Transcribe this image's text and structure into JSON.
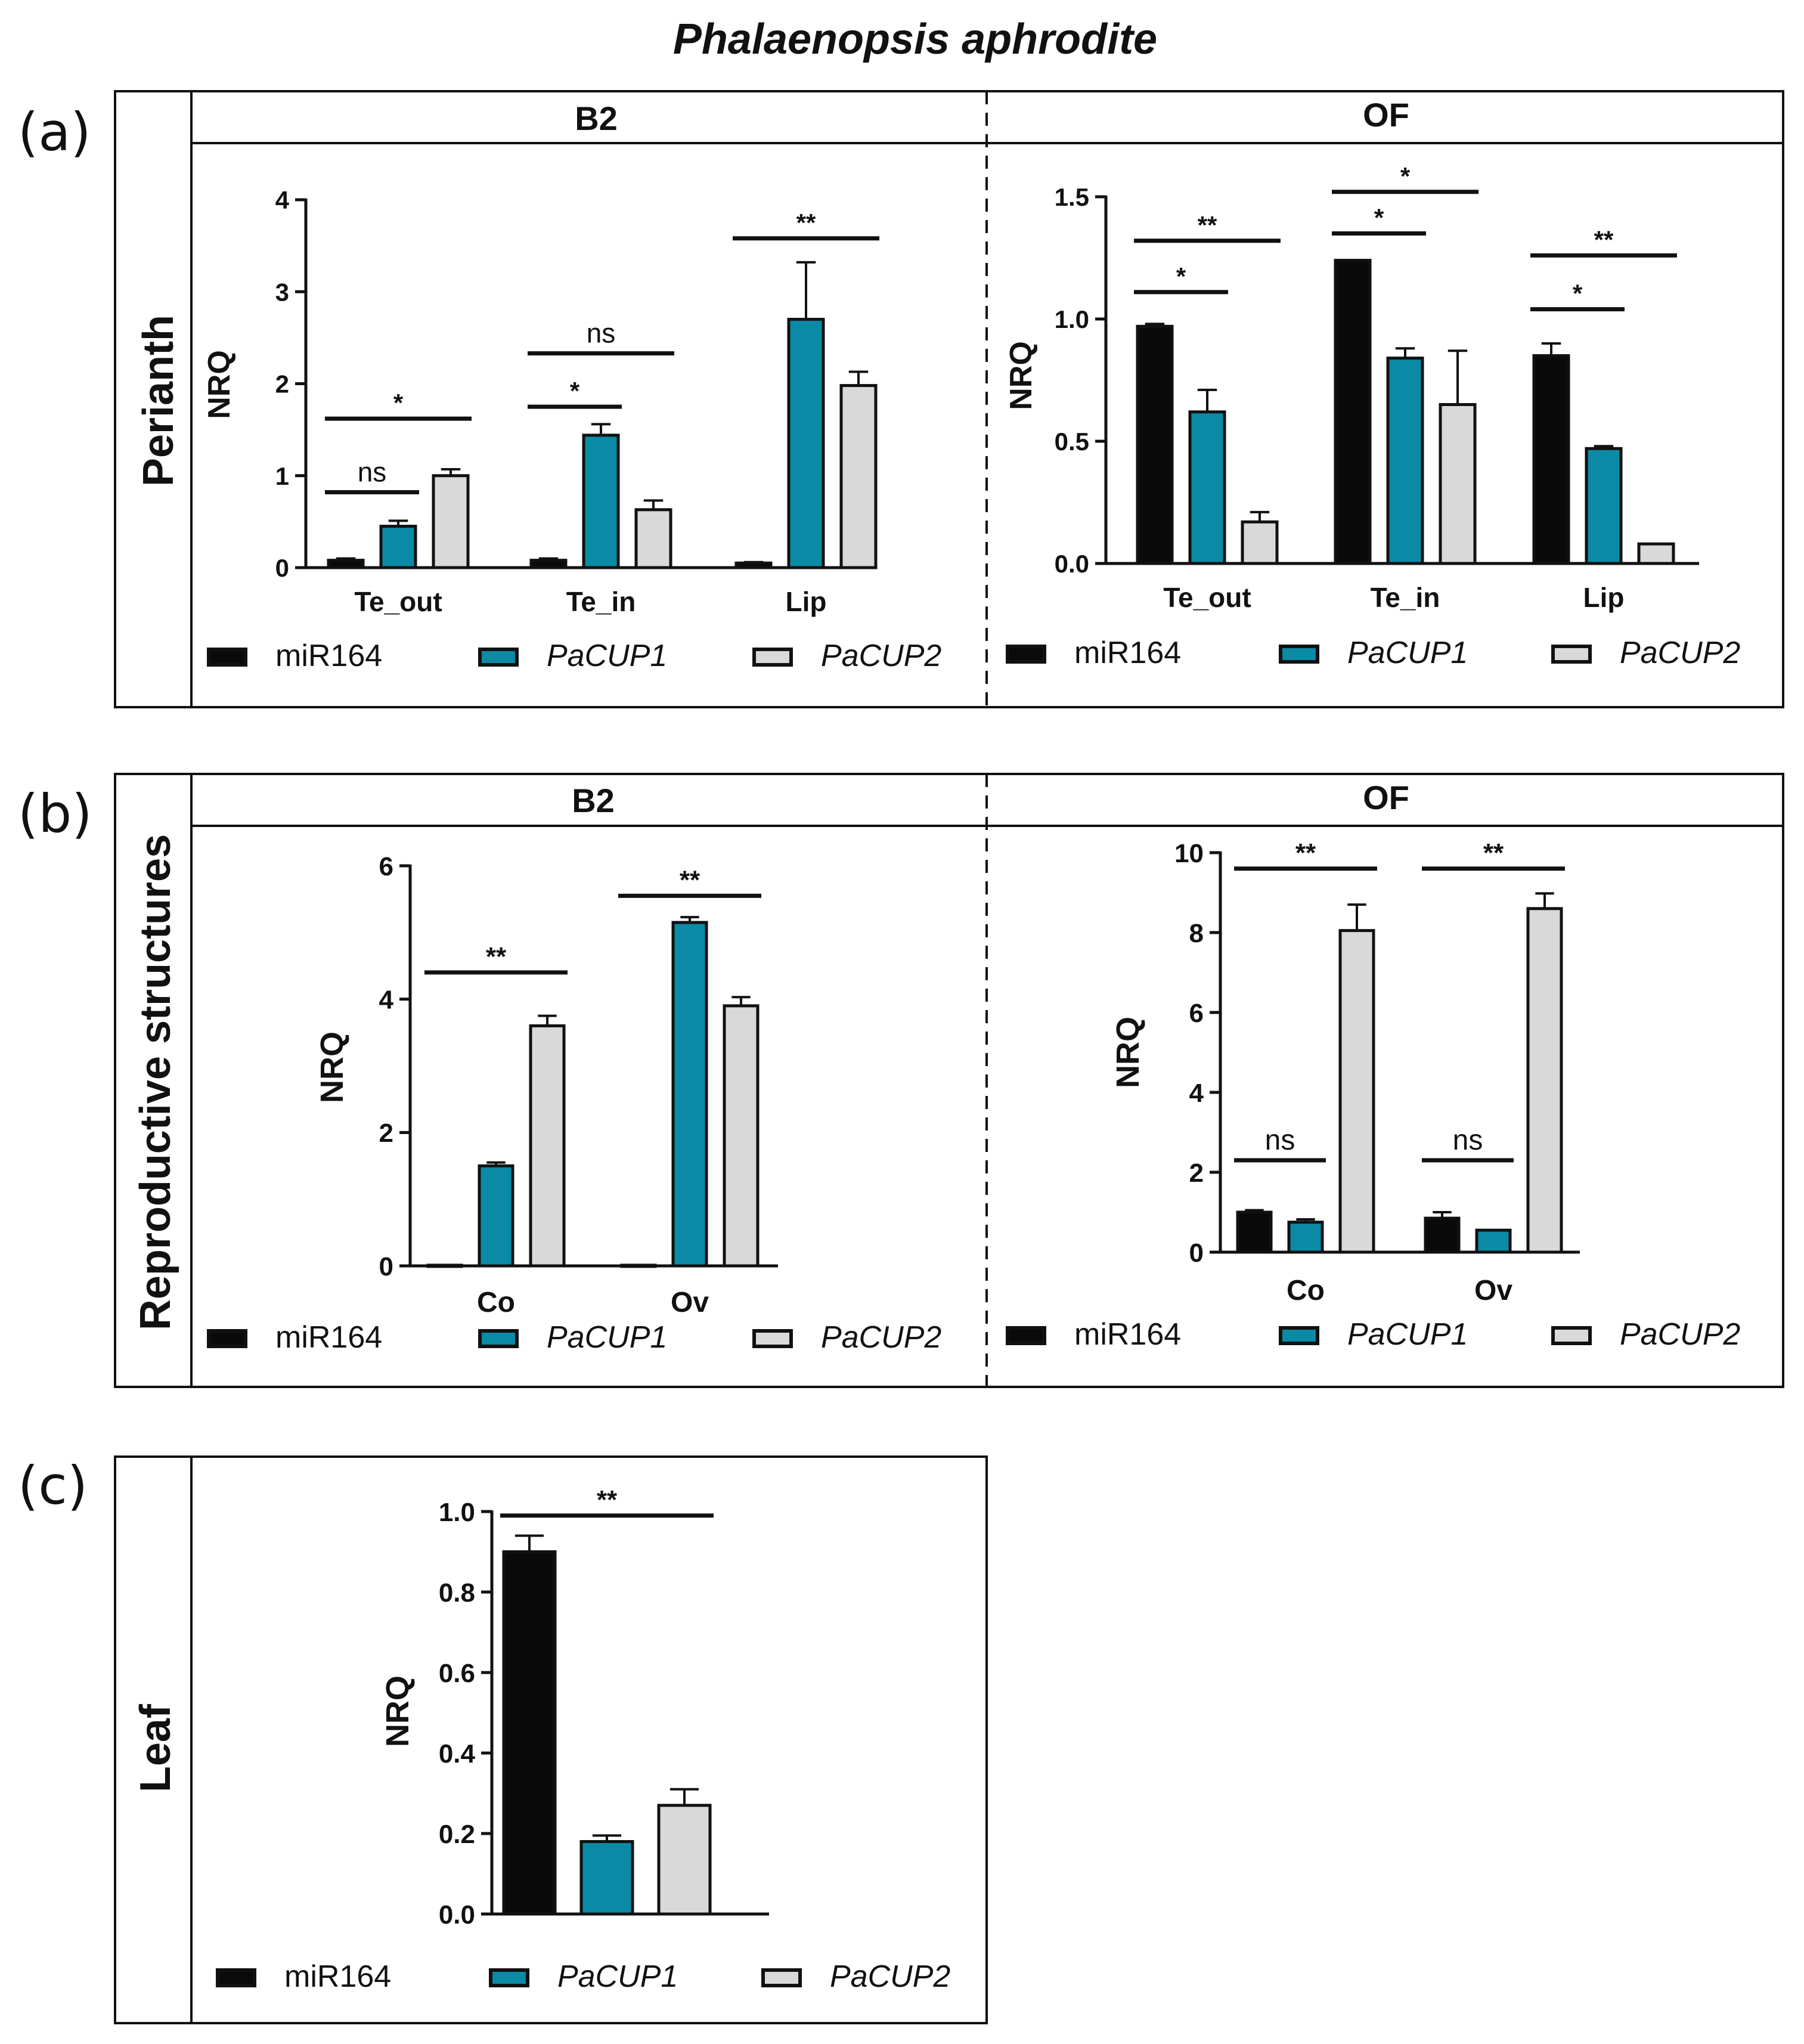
{
  "figure": {
    "title": "Phalaenopsis aphrodite"
  },
  "colors": {
    "miR164": "#0a0a0a",
    "PaCUP1": "#0a8aa4",
    "PaCUP2": "#d9d9d9",
    "stroke": "#111111"
  },
  "legend": {
    "items": [
      {
        "key": "miR164",
        "label": "miR164",
        "italic": false
      },
      {
        "key": "PaCUP1",
        "label": "PaCUP1",
        "italic": true
      },
      {
        "key": "PaCUP2",
        "label": "PaCUP2",
        "italic": true
      }
    ]
  },
  "rows": [
    {
      "letter": "(a)",
      "label": "Perianth",
      "headers": [
        "B2",
        "OF"
      ]
    },
    {
      "letter": "(b)",
      "label": "Reproductive structures",
      "headers": [
        "B2",
        "OF"
      ]
    },
    {
      "letter": "(c)",
      "label": "Leaf",
      "headers": []
    }
  ],
  "chart_data": [
    {
      "id": "a-B2",
      "type": "bar",
      "ylabel": "NRQ",
      "ylim": [
        0,
        4
      ],
      "yticks": [
        "0",
        "1",
        "2",
        "3",
        "4"
      ],
      "categories": [
        "Te_out",
        "Te_in",
        "Lip"
      ],
      "series": [
        {
          "name": "miR164",
          "values": [
            0.08,
            0.08,
            0.05
          ],
          "errors": [
            0.02,
            0.02,
            0.01
          ]
        },
        {
          "name": "PaCUP1",
          "values": [
            0.45,
            1.44,
            2.7
          ],
          "errors": [
            0.06,
            0.12,
            0.62
          ]
        },
        {
          "name": "PaCUP2",
          "values": [
            1.0,
            0.63,
            1.98
          ],
          "errors": [
            0.07,
            0.1,
            0.15
          ]
        }
      ],
      "significance": [
        {
          "cat": 0,
          "from": 0,
          "to": 1,
          "y": 0.82,
          "label": "ns"
        },
        {
          "cat": 0,
          "from": 0,
          "to": 2,
          "y": 1.62,
          "label": "*"
        },
        {
          "cat": 1,
          "from": 0,
          "to": 1,
          "y": 1.75,
          "label": "*"
        },
        {
          "cat": 1,
          "from": 0,
          "to": 2,
          "y": 2.33,
          "label": "ns"
        },
        {
          "cat": 2,
          "from": 0,
          "to": 2,
          "y": 3.58,
          "label": "**"
        }
      ]
    },
    {
      "id": "a-OF",
      "type": "bar",
      "ylabel": "NRQ",
      "ylim": [
        0,
        1.5
      ],
      "yticks": [
        "0.0",
        "0.5",
        "1.0",
        "1.5"
      ],
      "categories": [
        "Te_out",
        "Te_in",
        "Lip"
      ],
      "series": [
        {
          "name": "miR164",
          "values": [
            0.97,
            1.24,
            0.85
          ],
          "errors": [
            0.01,
            0.0,
            0.05
          ]
        },
        {
          "name": "PaCUP1",
          "values": [
            0.62,
            0.84,
            0.47
          ],
          "errors": [
            0.09,
            0.04,
            0.01
          ]
        },
        {
          "name": "PaCUP2",
          "values": [
            0.17,
            0.65,
            0.08
          ],
          "errors": [
            0.04,
            0.22,
            0.0
          ]
        }
      ],
      "significance": [
        {
          "cat": 0,
          "from": 0,
          "to": 1,
          "y": 1.11,
          "label": "*"
        },
        {
          "cat": 0,
          "from": 0,
          "to": 2,
          "y": 1.32,
          "label": "**"
        },
        {
          "cat": 1,
          "from": 0,
          "to": 1,
          "y": 1.35,
          "label": "*"
        },
        {
          "cat": 1,
          "from": 0,
          "to": 2,
          "y": 1.52,
          "label": "*"
        },
        {
          "cat": 2,
          "from": 0,
          "to": 1,
          "y": 1.04,
          "label": "*"
        },
        {
          "cat": 2,
          "from": 0,
          "to": 2,
          "y": 1.26,
          "label": "**"
        }
      ]
    },
    {
      "id": "b-B2",
      "type": "bar",
      "ylabel": "NRQ",
      "ylim": [
        0,
        6
      ],
      "yticks": [
        "0",
        "2",
        "4",
        "6"
      ],
      "categories": [
        "Co",
        "Ov"
      ],
      "series": [
        {
          "name": "miR164",
          "values": [
            0.01,
            0.01
          ],
          "errors": [
            0.0,
            0.0
          ]
        },
        {
          "name": "PaCUP1",
          "values": [
            1.5,
            5.15
          ],
          "errors": [
            0.05,
            0.08
          ]
        },
        {
          "name": "PaCUP2",
          "values": [
            3.6,
            3.9
          ],
          "errors": [
            0.15,
            0.13
          ]
        }
      ],
      "significance": [
        {
          "cat": 0,
          "from": 0,
          "to": 2,
          "y": 4.4,
          "label": "**"
        },
        {
          "cat": 1,
          "from": 0,
          "to": 2,
          "y": 5.55,
          "label": "**"
        }
      ]
    },
    {
      "id": "b-OF",
      "type": "bar",
      "ylabel": "NRQ",
      "ylim": [
        0,
        10
      ],
      "yticks": [
        "0",
        "2",
        "4",
        "6",
        "8",
        "10"
      ],
      "categories": [
        "Co",
        "Ov"
      ],
      "series": [
        {
          "name": "miR164",
          "values": [
            1.0,
            0.85
          ],
          "errors": [
            0.05,
            0.15
          ]
        },
        {
          "name": "PaCUP1",
          "values": [
            0.75,
            0.55
          ],
          "errors": [
            0.07,
            0.0
          ]
        },
        {
          "name": "PaCUP2",
          "values": [
            8.05,
            8.6
          ],
          "errors": [
            0.65,
            0.38
          ]
        }
      ],
      "significance": [
        {
          "cat": 0,
          "from": 0,
          "to": 1,
          "y": 2.3,
          "label": "ns"
        },
        {
          "cat": 0,
          "from": 0,
          "to": 2,
          "y": 9.6,
          "label": "**"
        },
        {
          "cat": 1,
          "from": 0,
          "to": 1,
          "y": 2.3,
          "label": "ns"
        },
        {
          "cat": 1,
          "from": 0,
          "to": 2,
          "y": 9.6,
          "label": "**"
        }
      ]
    },
    {
      "id": "c-leaf",
      "type": "bar",
      "ylabel": "NRQ",
      "ylim": [
        0,
        1.0
      ],
      "yticks": [
        "0.0",
        "0.2",
        "0.4",
        "0.6",
        "0.8",
        "1.0"
      ],
      "categories": [
        ""
      ],
      "series": [
        {
          "name": "miR164",
          "values": [
            0.9
          ],
          "errors": [
            0.04
          ]
        },
        {
          "name": "PaCUP1",
          "values": [
            0.18
          ],
          "errors": [
            0.015
          ]
        },
        {
          "name": "PaCUP2",
          "values": [
            0.27
          ],
          "errors": [
            0.04
          ]
        }
      ],
      "significance": [
        {
          "cat": 0,
          "from": 0,
          "to": 2,
          "y": 0.99,
          "label": "**"
        }
      ]
    }
  ]
}
